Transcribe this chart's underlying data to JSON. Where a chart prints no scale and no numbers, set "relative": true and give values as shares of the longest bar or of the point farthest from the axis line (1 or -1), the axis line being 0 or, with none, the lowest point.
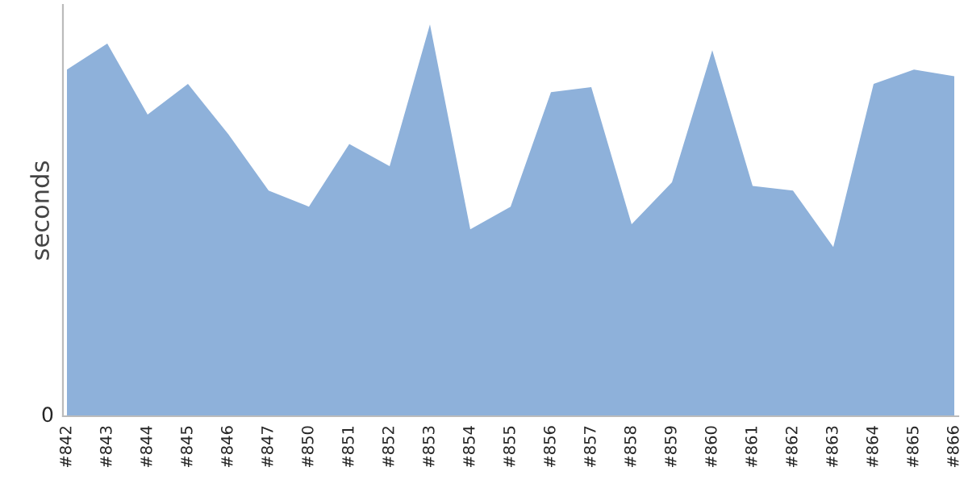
{
  "chart_data": {
    "type": "area",
    "ylabel": "seconds",
    "relative": true,
    "annotations": [
      "0"
    ],
    "grid": false,
    "legend": false,
    "categories": [
      "#842",
      "#843",
      "#844",
      "#845",
      "#846",
      "#847",
      "#850",
      "#851",
      "#852",
      "#853",
      "#854",
      "#855",
      "#856",
      "#857",
      "#858",
      "#859",
      "#860",
      "#861",
      "#862",
      "#863",
      "#864",
      "#865",
      "#866"
    ],
    "series": [
      {
        "color": "#8eb1da",
        "values": [
          0.885,
          0.951,
          0.77,
          0.848,
          0.72,
          0.576,
          0.535,
          0.695,
          0.638,
          1,
          0.477,
          0.535,
          0.827,
          0.84,
          0.49,
          0.597,
          0.934,
          0.588,
          0.576,
          0.432,
          0.848,
          0.885,
          0.868
        ]
      }
    ]
  }
}
